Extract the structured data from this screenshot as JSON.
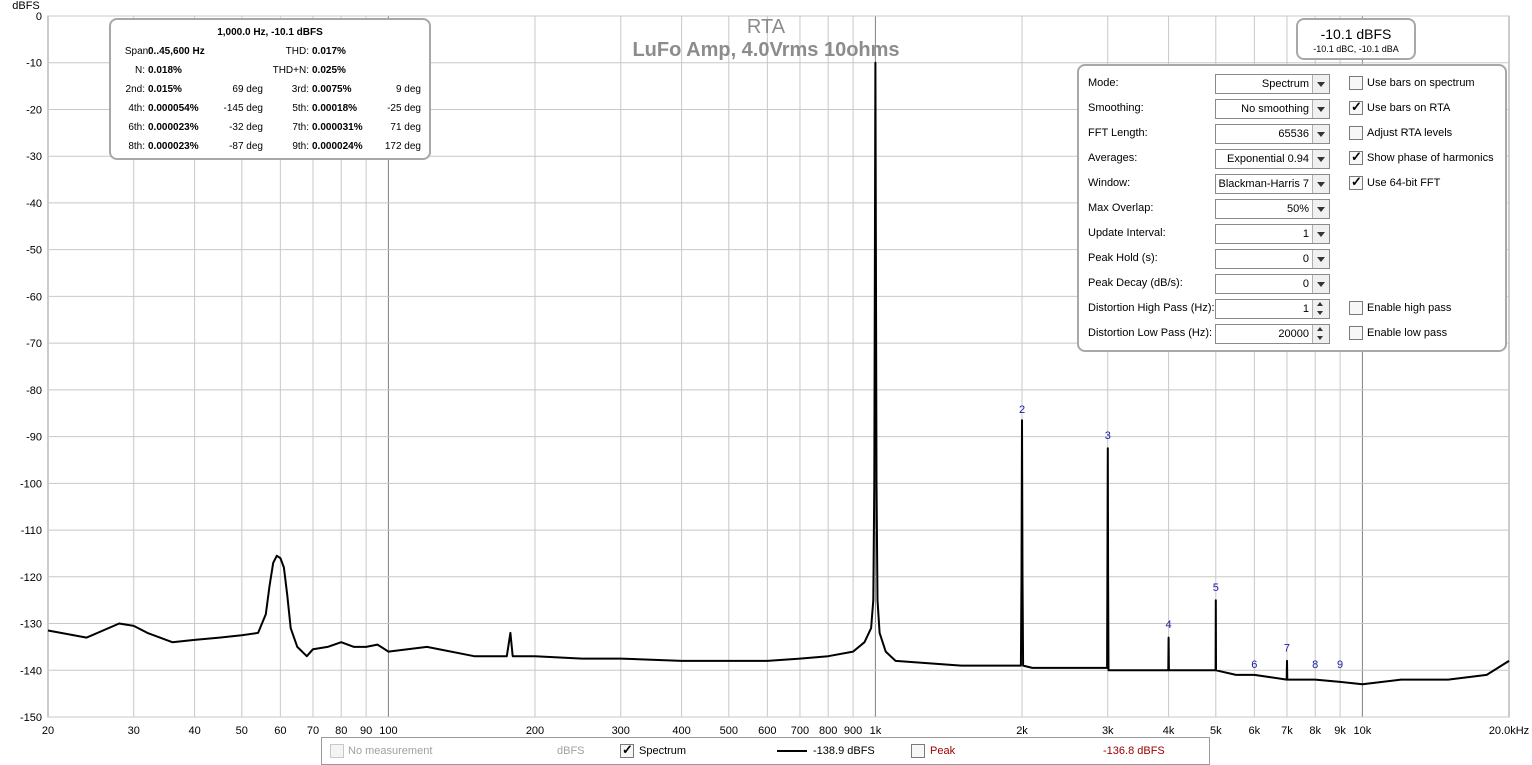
{
  "chart_data": {
    "type": "line",
    "title": "RTA",
    "subtitle": "LuFo Amp, 4.0Vrms 10ohms",
    "ylabel": "dBFS",
    "x_scale": "log",
    "xlim": [
      20,
      20000
    ],
    "ylim": [
      -150,
      0
    ],
    "grid": true,
    "x_ticks": [
      {
        "v": 20,
        "t": "20"
      },
      {
        "v": 30,
        "t": "30"
      },
      {
        "v": 40,
        "t": "40"
      },
      {
        "v": 50,
        "t": "50"
      },
      {
        "v": 60,
        "t": "60"
      },
      {
        "v": 70,
        "t": "70"
      },
      {
        "v": 80,
        "t": "80"
      },
      {
        "v": 90,
        "t": "90"
      },
      {
        "v": 100,
        "t": "100"
      },
      {
        "v": 200,
        "t": "200"
      },
      {
        "v": 300,
        "t": "300"
      },
      {
        "v": 400,
        "t": "400"
      },
      {
        "v": 500,
        "t": "500"
      },
      {
        "v": 600,
        "t": "600"
      },
      {
        "v": 700,
        "t": "700"
      },
      {
        "v": 800,
        "t": "800"
      },
      {
        "v": 900,
        "t": "900"
      },
      {
        "v": 1000,
        "t": "1k"
      },
      {
        "v": 2000,
        "t": "2k"
      },
      {
        "v": 3000,
        "t": "3k"
      },
      {
        "v": 4000,
        "t": "4k"
      },
      {
        "v": 5000,
        "t": "5k"
      },
      {
        "v": 6000,
        "t": "6k"
      },
      {
        "v": 7000,
        "t": "7k"
      },
      {
        "v": 8000,
        "t": "8k"
      },
      {
        "v": 9000,
        "t": "9k"
      },
      {
        "v": 10000,
        "t": "10k"
      },
      {
        "v": 20000,
        "t": "20.0kHz"
      }
    ],
    "y_ticks": [
      0,
      -10,
      -20,
      -30,
      -40,
      -50,
      -60,
      -70,
      -80,
      -90,
      -100,
      -110,
      -120,
      -130,
      -140,
      -150
    ],
    "series": [
      {
        "name": "Spectrum",
        "color": "#000000",
        "x": [
          20,
          24,
          28,
          30,
          32,
          36,
          40,
          45,
          50,
          54,
          56,
          57,
          58,
          59,
          60,
          61,
          62,
          63,
          65,
          68,
          70,
          75,
          80,
          85,
          90,
          95,
          100,
          120,
          150,
          175,
          178,
          180,
          200,
          250,
          300,
          400,
          500,
          600,
          700,
          800,
          900,
          950,
          980,
          990,
          995,
          1000,
          1005,
          1010,
          1020,
          1050,
          1100,
          1500,
          1990,
          1995,
          2000,
          2005,
          2010,
          2100,
          2990,
          2995,
          3000,
          3005,
          3010,
          3500,
          3995,
          4000,
          4005,
          4500,
          4995,
          5000,
          5005,
          5500,
          6000,
          6990,
          7000,
          7010,
          8000,
          9000,
          10000,
          12000,
          15000,
          18000,
          20000
        ],
        "y": [
          -131.5,
          -133,
          -130,
          -130.5,
          -132,
          -134,
          -133.5,
          -133,
          -132.5,
          -132,
          -128,
          -122,
          -117,
          -115.5,
          -116,
          -118,
          -124,
          -131,
          -135,
          -137,
          -135.5,
          -135,
          -134,
          -135,
          -135,
          -134.5,
          -136,
          -135,
          -137,
          -137,
          -132,
          -137,
          -137,
          -137.5,
          -137.5,
          -138,
          -138,
          -138,
          -137.5,
          -137,
          -136,
          -134,
          -131,
          -125,
          -100,
          -10,
          -100,
          -125,
          -132,
          -136,
          -138,
          -139,
          -139,
          -120,
          -86.5,
          -120,
          -139,
          -139.5,
          -139.5,
          -120,
          -92.5,
          -120,
          -140,
          -140,
          -140,
          -133,
          -140,
          -140,
          -140,
          -125,
          -140,
          -141,
          -141,
          -142,
          -138,
          -142,
          -142,
          -142.5,
          -143,
          -142,
          -142,
          -141,
          -138
        ]
      }
    ],
    "harmonic_labels": [
      {
        "t": "2",
        "x": 2000,
        "y": -85
      },
      {
        "t": "3",
        "x": 3000,
        "y": -90.5
      },
      {
        "t": "4",
        "x": 4000,
        "y": -131
      },
      {
        "t": "5",
        "x": 5000,
        "y": -123
      },
      {
        "t": "6",
        "x": 6000,
        "y": -139.5
      },
      {
        "t": "7",
        "x": 7000,
        "y": -136
      },
      {
        "t": "8",
        "x": 8000,
        "y": -139.5
      },
      {
        "t": "9",
        "x": 9000,
        "y": -139.5
      }
    ]
  },
  "colors": {
    "grid": "#c8c8c8",
    "accent_grid": "#808080",
    "harmonic_label": "#1a1aa6",
    "peak": "#a00000",
    "title": "#8c8c8c"
  },
  "stats": {
    "header": "1,000.0 Hz, -10.1 dBFS",
    "span_label": "Span:",
    "span_value": "0..45,600 Hz",
    "thd_label": "THD:",
    "thd_value": "0.017%",
    "n_label": "N:",
    "n_value": "0.018%",
    "thdn_label": "THD+N:",
    "thdn_value": "0.025%",
    "rows": [
      {
        "l1": "2nd:",
        "v1": "0.015%",
        "p1": "69 deg",
        "l2": "3rd:",
        "v2": "0.0075%",
        "p2": "9 deg"
      },
      {
        "l1": "4th:",
        "v1": "0.000054%",
        "p1": "-145 deg",
        "l2": "5th:",
        "v2": "0.00018%",
        "p2": "-25 deg"
      },
      {
        "l1": "6th:",
        "v1": "0.000023%",
        "p1": "-32 deg",
        "l2": "7th:",
        "v2": "0.000031%",
        "p2": "71 deg"
      },
      {
        "l1": "8th:",
        "v1": "0.000023%",
        "p1": "-87 deg",
        "l2": "9th:",
        "v2": "0.000024%",
        "p2": "172 deg"
      }
    ]
  },
  "level": {
    "main": "-10.1 dBFS",
    "sub": "-10.1 dBC, -10.1 dBA"
  },
  "controls": {
    "mode_label": "Mode:",
    "mode_value": "Spectrum",
    "smoothing_label": "Smoothing:",
    "smoothing_value": "No  smoothing",
    "fft_label": "FFT Length:",
    "fft_value": "65536",
    "averages_label": "Averages:",
    "averages_value": "Exponential 0.94",
    "window_label": "Window:",
    "window_value": "Blackman-Harris 7",
    "overlap_label": "Max Overlap:",
    "overlap_value": "50%",
    "update_label": "Update Interval:",
    "update_value": "1",
    "peakhold_label": "Peak Hold (s):",
    "peakhold_value": "0",
    "peakdecay_label": "Peak Decay (dB/s):",
    "peakdecay_value": "0",
    "dhp_label": "Distortion High Pass (Hz):",
    "dhp_value": "1",
    "dlp_label": "Distortion Low Pass (Hz):",
    "dlp_value": "20000",
    "cb_bars_spectrum": "Use bars on spectrum",
    "cb_bars_rta": "Use bars on RTA",
    "cb_adjust_rta": "Adjust RTA levels",
    "cb_phase": "Show phase of harmonics",
    "cb_64bit": "Use 64-bit FFT",
    "cb_highpass": "Enable high pass",
    "cb_lowpass": "Enable low pass"
  },
  "legend": {
    "no_measurement": "No measurement",
    "unit1": "dBFS",
    "spectrum": "Spectrum",
    "spectrum_value": "-138.9 dBFS",
    "peak": "Peak",
    "peak_value": "-136.8 dBFS"
  }
}
